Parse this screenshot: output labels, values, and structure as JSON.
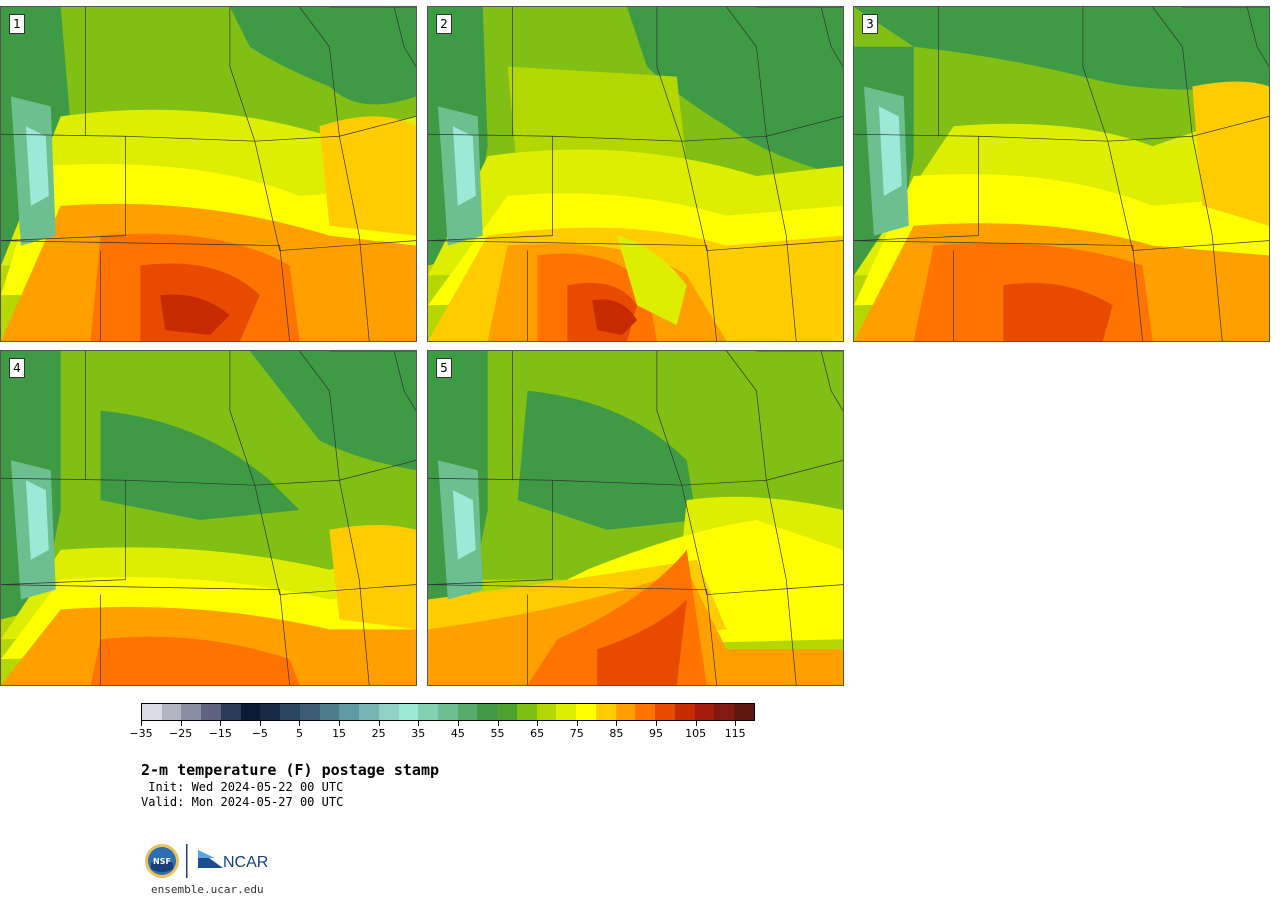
{
  "panels": [
    {
      "label": "1",
      "theme": 1
    },
    {
      "label": "2",
      "theme": 2
    },
    {
      "label": "3",
      "theme": 3
    },
    {
      "label": "4",
      "theme": 4
    },
    {
      "label": "5",
      "theme": 5
    }
  ],
  "colorbar": {
    "colors": [
      "#dadbe5",
      "#b2b4c4",
      "#8a8ea3",
      "#5e6480",
      "#2e3a5a",
      "#0e1a33",
      "#1a2a45",
      "#2b4560",
      "#3b5c74",
      "#4d7c88",
      "#5e9aa0",
      "#75b6b5",
      "#8fd3c8",
      "#9ee8d8",
      "#7fd1b0",
      "#6cc08f",
      "#55ad6c",
      "#3f9a45",
      "#4da12f",
      "#82bf14",
      "#b3d700",
      "#ddee00",
      "#ffff00",
      "#ffcc00",
      "#ff9f00",
      "#ff7300",
      "#e84a00",
      "#c82a00",
      "#a51c0a",
      "#801a12",
      "#5e1810"
    ],
    "ticks": [
      "−35",
      "−25",
      "−15",
      "−5",
      "5",
      "15",
      "25",
      "35",
      "45",
      "55",
      "65",
      "75",
      "85",
      "95",
      "105",
      "115"
    ]
  },
  "title": "2-m temperature (F) postage stamp",
  "init_text": " Init: Wed 2024-05-22 00 UTC",
  "valid_text": "Valid: Mon 2024-05-27 00 UTC",
  "logos": {
    "nsf": "NSF",
    "ncar": "NCAR"
  },
  "website": "ensemble.ucar.edu"
}
